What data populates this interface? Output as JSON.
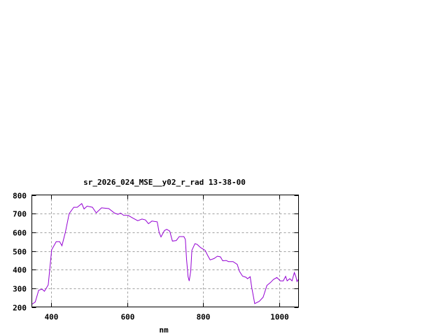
{
  "chart_data": {
    "type": "line",
    "title": "sr_2026_024_MSE__y02_r_rad 13-38-00",
    "xlabel": "nm",
    "ylabel": "",
    "xlim": [
      350,
      1050
    ],
    "ylim": [
      200,
      800
    ],
    "xticks": [
      400,
      600,
      800,
      1000
    ],
    "yticks": [
      200,
      300,
      400,
      500,
      600,
      700,
      800
    ],
    "grid": true,
    "line_color": "#9400d3",
    "series": [
      {
        "x": [
          351,
          359,
          368,
          377,
          383,
          393,
          402,
          414,
          423,
          429,
          438,
          448,
          460,
          469,
          481,
          487,
          495,
          509,
          519,
          533,
          552,
          567,
          576,
          583,
          591,
          603,
          616,
          628,
          639,
          648,
          656,
          665,
          679,
          684,
          689,
          698,
          704,
          712,
          719,
          729,
          737,
          749,
          753,
          756,
          760,
          763,
          767,
          770,
          778,
          784,
          793,
          805,
          811,
          818,
          828,
          837,
          845,
          851,
          860,
          866,
          878,
          889,
          895,
          903,
          912,
          916,
          923,
          927,
          935,
          947,
          957,
          967,
          976,
          984,
          993,
          1002,
          1010,
          1016,
          1020,
          1027,
          1033,
          1039,
          1043,
          1046,
          1050
        ],
        "y": [
          215,
          227,
          290,
          295,
          284,
          318,
          506,
          550,
          550,
          528,
          600,
          700,
          734,
          734,
          754,
          725,
          740,
          734,
          704,
          731,
          727,
          703,
          696,
          703,
          691,
          690,
          675,
          662,
          671,
          666,
          646,
          660,
          656,
          600,
          575,
          609,
          616,
          606,
          553,
          556,
          577,
          577,
          562,
          456,
          362,
          339,
          393,
          503,
          539,
          535,
          518,
          503,
          478,
          452,
          459,
          472,
          468,
          447,
          449,
          443,
          443,
          428,
          391,
          365,
          359,
          351,
          362,
          305,
          218,
          230,
          252,
          315,
          330,
          347,
          358,
          340,
          340,
          364,
          340,
          351,
          340,
          384,
          362,
          336,
          350
        ]
      }
    ]
  }
}
